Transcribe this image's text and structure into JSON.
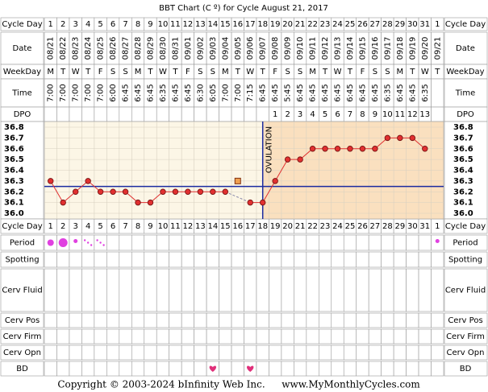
{
  "chart_data": {
    "type": "line",
    "title": "BBT Chart (C º) for Cycle August 21, 2017",
    "row_labels": {
      "cycle_day": "Cycle Day",
      "date": "Date",
      "weekday": "WeekDay",
      "time": "Time",
      "dpo": "DPO",
      "period": "Period",
      "spotting": "Spotting",
      "cerv_fluid": "Cerv Fluid",
      "cerv_pos": "Cerv Pos",
      "cerv_firm": "Cerv Firm",
      "cerv_opn": "Cerv Opn",
      "bd": "BD"
    },
    "categories": [
      "1",
      "2",
      "3",
      "4",
      "5",
      "6",
      "7",
      "8",
      "9",
      "10",
      "11",
      "12",
      "13",
      "14",
      "15",
      "16",
      "17",
      "18",
      "19",
      "20",
      "21",
      "22",
      "23",
      "24",
      "25",
      "26",
      "27",
      "28",
      "29",
      "30",
      "31",
      "1"
    ],
    "dates": [
      "08/21",
      "08/22",
      "08/23",
      "08/24",
      "08/25",
      "08/26",
      "08/27",
      "08/28",
      "08/29",
      "08/30",
      "08/31",
      "09/01",
      "09/02",
      "09/03",
      "09/04",
      "09/05",
      "09/06",
      "09/07",
      "09/08",
      "09/09",
      "09/10",
      "09/11",
      "09/12",
      "09/13",
      "09/14",
      "09/15",
      "09/16",
      "09/17",
      "09/18",
      "09/19",
      "09/20",
      "09/21"
    ],
    "weekdays": [
      "M",
      "T",
      "W",
      "T",
      "F",
      "S",
      "S",
      "M",
      "T",
      "W",
      "T",
      "F",
      "S",
      "S",
      "M",
      "T",
      "W",
      "T",
      "F",
      "S",
      "S",
      "M",
      "T",
      "W",
      "T",
      "F",
      "S",
      "S",
      "M",
      "T",
      "W",
      "T"
    ],
    "times": [
      "7:00",
      "7:00",
      "7:00",
      "7:00",
      "7:00",
      "6:00",
      "6:45",
      "6:45",
      "6:45",
      "6:35",
      "6:45",
      "6:45",
      "6:30",
      "6:05",
      "7:00",
      "7:00",
      "7:15",
      "6:45",
      "6:45",
      "5:45",
      "6:45",
      "6:45",
      "6:45",
      "6:45",
      "6:45",
      "6:45",
      "6:45",
      "6:35",
      "6:45",
      "6:45",
      "6:35",
      null
    ],
    "dpo": [
      null,
      null,
      null,
      null,
      null,
      null,
      null,
      null,
      null,
      null,
      null,
      null,
      null,
      null,
      null,
      null,
      null,
      null,
      1,
      2,
      3,
      4,
      5,
      6,
      7,
      8,
      9,
      10,
      11,
      12,
      13,
      null
    ],
    "series": [
      {
        "name": "Temperature",
        "color": "#e03030",
        "values": [
          36.3,
          36.1,
          36.2,
          36.3,
          36.2,
          36.2,
          36.2,
          36.1,
          36.1,
          36.2,
          36.2,
          36.2,
          36.2,
          36.2,
          36.2,
          null,
          36.1,
          36.1,
          36.3,
          36.5,
          36.5,
          36.6,
          36.6,
          36.6,
          36.6,
          36.6,
          36.6,
          36.7,
          36.7,
          36.7,
          36.6,
          null
        ]
      }
    ],
    "discarded_temps": [
      null,
      null,
      null,
      null,
      null,
      null,
      null,
      null,
      null,
      null,
      null,
      null,
      null,
      null,
      null,
      36.3,
      null,
      null,
      null,
      null,
      null,
      null,
      null,
      null,
      null,
      null,
      null,
      null,
      null,
      null,
      null,
      null
    ],
    "coverline": 36.25,
    "ovulation_date": "09/07",
    "ovulation_label": "OVULATION",
    "ylim": [
      36.0,
      36.8
    ],
    "yticks": [
      {
        "value": 36.0,
        "label": "36.0"
      },
      36.1,
      36.2,
      36.3,
      36.4,
      36.5,
      36.6,
      36.7,
      36.8
    ],
    "grid": true,
    "period": [
      {
        "date": "08/21",
        "flow": "medium"
      },
      {
        "date": "08/22",
        "flow": "heavy"
      },
      {
        "date": "08/23",
        "flow": "light"
      },
      {
        "date": "08/24",
        "flow": "spotting"
      },
      {
        "date": "08/25",
        "flow": "spotting"
      },
      {
        "date": "09/21",
        "flow": "light"
      }
    ],
    "bd_dates": [
      "09/03",
      "09/06"
    ],
    "footer": {
      "copyright": "Copyright © 2003-2024 bInfinity Web Inc.",
      "site": "www.MyMonthlyCycles.com"
    }
  }
}
